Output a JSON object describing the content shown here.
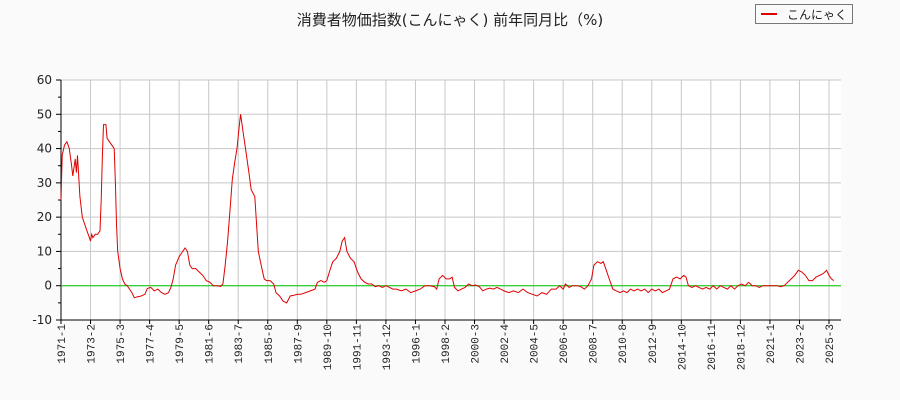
{
  "title": "消費者物価指数(こんにゃく) 前年同月比（%)",
  "legend": {
    "label": "こんにゃく",
    "color": "#e00000"
  },
  "colors": {
    "series": "#e00000",
    "zero_line": "#00cc00",
    "grid": "#c8c8c8",
    "axis": "#000000",
    "background": "#fafafa",
    "plot_bg": "#ffffff"
  },
  "chart_data": {
    "type": "line",
    "title": "消費者物価指数(こんにゃく) 前年同月比（%)",
    "xlabel": "",
    "ylabel": "",
    "ylim": [
      -10,
      60
    ],
    "yticks": [
      -10,
      0,
      10,
      20,
      30,
      40,
      50,
      60
    ],
    "grid": true,
    "legend_position": "top-right",
    "x_tick_labels": [
      "1971-1",
      "1973-2",
      "1975-3",
      "1977-4",
      "1979-5",
      "1981-6",
      "1983-7",
      "1985-8",
      "1987-9",
      "1989-10",
      "1991-11",
      "1993-12",
      "1996-1",
      "1998-2",
      "2000-3",
      "2002-4",
      "2004-5",
      "2006-6",
      "2008-7",
      "2010-8",
      "2012-9",
      "2014-10",
      "2016-11",
      "2018-12",
      "2021-1",
      "2023-2",
      "2025-3"
    ],
    "series": [
      {
        "name": "こんにゃく",
        "points": [
          [
            "1971-1",
            25
          ],
          [
            "1971-2",
            38
          ],
          [
            "1971-4",
            41
          ],
          [
            "1971-6",
            42
          ],
          [
            "1971-8",
            40
          ],
          [
            "1971-10",
            35
          ],
          [
            "1971-11",
            32
          ],
          [
            "1972-1",
            37
          ],
          [
            "1972-2",
            33
          ],
          [
            "1972-3",
            38
          ],
          [
            "1972-4",
            32
          ],
          [
            "1972-5",
            26
          ],
          [
            "1972-7",
            20
          ],
          [
            "1972-9",
            18
          ],
          [
            "1972-11",
            16
          ],
          [
            "1973-1",
            14
          ],
          [
            "1973-2",
            13
          ],
          [
            "1973-3",
            15
          ],
          [
            "1973-4",
            14
          ],
          [
            "1973-6",
            15
          ],
          [
            "1973-8",
            15
          ],
          [
            "1973-10",
            16
          ],
          [
            "1973-11",
            25
          ],
          [
            "1973-12",
            38
          ],
          [
            "1974-1",
            47
          ],
          [
            "1974-3",
            47
          ],
          [
            "1974-4",
            43
          ],
          [
            "1974-6",
            42
          ],
          [
            "1974-8",
            41
          ],
          [
            "1974-10",
            40
          ],
          [
            "1974-11",
            30
          ],
          [
            "1974-12",
            18
          ],
          [
            "1975-1",
            10
          ],
          [
            "1975-3",
            5
          ],
          [
            "1975-5",
            2
          ],
          [
            "1975-7",
            0.5
          ],
          [
            "1975-9",
            0
          ],
          [
            "1975-11",
            -1
          ],
          [
            "1976-1",
            -2
          ],
          [
            "1976-3",
            -3.5
          ],
          [
            "1976-6",
            -3.2
          ],
          [
            "1976-9",
            -3.0
          ],
          [
            "1976-12",
            -2.5
          ],
          [
            "1977-2",
            -0.8
          ],
          [
            "1977-5",
            -0.5
          ],
          [
            "1977-8",
            -1.5
          ],
          [
            "1977-11",
            -1
          ],
          [
            "1978-2",
            -2
          ],
          [
            "1978-5",
            -2.5
          ],
          [
            "1978-8",
            -2
          ],
          [
            "1978-10",
            -0.5
          ],
          [
            "1978-12",
            2
          ],
          [
            "1979-2",
            6
          ],
          [
            "1979-5",
            8.5
          ],
          [
            "1979-8",
            10
          ],
          [
            "1979-10",
            11
          ],
          [
            "1979-12",
            10
          ],
          [
            "1980-2",
            6
          ],
          [
            "1980-4",
            5
          ],
          [
            "1980-7",
            5
          ],
          [
            "1980-10",
            4
          ],
          [
            "1981-1",
            3
          ],
          [
            "1981-4",
            1.5
          ],
          [
            "1981-7",
            1
          ],
          [
            "1981-10",
            0
          ],
          [
            "1982-1",
            0
          ],
          [
            "1982-4",
            -0.2
          ],
          [
            "1982-6",
            0.5
          ],
          [
            "1982-8",
            6
          ],
          [
            "1982-10",
            13
          ],
          [
            "1982-12",
            22
          ],
          [
            "1983-2",
            31
          ],
          [
            "1983-4",
            36
          ],
          [
            "1983-6",
            40
          ],
          [
            "1983-8",
            47
          ],
          [
            "1983-9",
            50
          ],
          [
            "1983-11",
            45
          ],
          [
            "1984-2",
            38
          ],
          [
            "1984-4",
            33
          ],
          [
            "1984-6",
            28
          ],
          [
            "1984-9",
            26
          ],
          [
            "1984-12",
            10
          ],
          [
            "1985-3",
            5
          ],
          [
            "1985-5",
            2
          ],
          [
            "1985-7",
            1.5
          ],
          [
            "1985-10",
            1.5
          ],
          [
            "1986-1",
            0.5
          ],
          [
            "1986-3",
            -2
          ],
          [
            "1986-6",
            -3
          ],
          [
            "1986-9",
            -4.5
          ],
          [
            "1986-12",
            -5
          ],
          [
            "1987-3",
            -3
          ],
          [
            "1987-6",
            -2.8
          ],
          [
            "1987-9",
            -2.5
          ],
          [
            "1987-12",
            -2.5
          ],
          [
            "1988-4",
            -2
          ],
          [
            "1988-8",
            -1.5
          ],
          [
            "1988-12",
            -1
          ],
          [
            "1989-2",
            1
          ],
          [
            "1989-5",
            1.5
          ],
          [
            "1989-8",
            1
          ],
          [
            "1989-10",
            1.5
          ],
          [
            "1990-1",
            5
          ],
          [
            "1990-3",
            7
          ],
          [
            "1990-6",
            8
          ],
          [
            "1990-9",
            10
          ],
          [
            "1990-11",
            13
          ],
          [
            "1991-1",
            14
          ],
          [
            "1991-3",
            10
          ],
          [
            "1991-6",
            8
          ],
          [
            "1991-9",
            7
          ],
          [
            "1991-12",
            4
          ],
          [
            "1992-3",
            2
          ],
          [
            "1992-6",
            1
          ],
          [
            "1992-9",
            0.5
          ],
          [
            "1992-12",
            0.5
          ],
          [
            "1993-3",
            -0.3
          ],
          [
            "1993-6",
            0
          ],
          [
            "1993-9",
            -0.5
          ],
          [
            "1993-12",
            0
          ],
          [
            "1994-3",
            -0.5
          ],
          [
            "1994-6",
            -1
          ],
          [
            "1994-9",
            -1
          ],
          [
            "1995-1",
            -1.5
          ],
          [
            "1995-5",
            -1
          ],
          [
            "1995-9",
            -2
          ],
          [
            "1996-1",
            -1.5
          ],
          [
            "1996-5",
            -1
          ],
          [
            "1996-9",
            0
          ],
          [
            "1997-1",
            0
          ],
          [
            "1997-5",
            -0.3
          ],
          [
            "1997-7",
            -1
          ],
          [
            "1997-9",
            2
          ],
          [
            "1997-12",
            3
          ],
          [
            "1998-3",
            2
          ],
          [
            "1998-6",
            2
          ],
          [
            "1998-8",
            2.5
          ],
          [
            "1998-10",
            -0.5
          ],
          [
            "1999-1",
            -1.5
          ],
          [
            "1999-4",
            -1
          ],
          [
            "1999-7",
            -0.5
          ],
          [
            "1999-10",
            0.5
          ],
          [
            "2000-1",
            0
          ],
          [
            "2000-4",
            0.2
          ],
          [
            "2000-7",
            -0.3
          ],
          [
            "2000-10",
            -1.5
          ],
          [
            "2001-1",
            -1
          ],
          [
            "2001-4",
            -0.7
          ],
          [
            "2001-7",
            -1
          ],
          [
            "2001-10",
            -0.5
          ],
          [
            "2002-1",
            -1
          ],
          [
            "2002-4",
            -1.5
          ],
          [
            "2002-8",
            -2
          ],
          [
            "2002-12",
            -1.5
          ],
          [
            "2003-4",
            -2
          ],
          [
            "2003-8",
            -1
          ],
          [
            "2003-12",
            -2
          ],
          [
            "2004-4",
            -2.5
          ],
          [
            "2004-8",
            -3
          ],
          [
            "2004-12",
            -2
          ],
          [
            "2005-4",
            -2.5
          ],
          [
            "2005-8",
            -1
          ],
          [
            "2005-12",
            -1
          ],
          [
            "2006-3",
            0
          ],
          [
            "2006-6",
            -1
          ],
          [
            "2006-8",
            0.5
          ],
          [
            "2006-11",
            -0.5
          ],
          [
            "2007-2",
            0
          ],
          [
            "2007-6",
            0
          ],
          [
            "2007-9",
            -0.3
          ],
          [
            "2007-12",
            -1
          ],
          [
            "2008-3",
            0
          ],
          [
            "2008-6",
            2
          ],
          [
            "2008-8",
            6
          ],
          [
            "2008-11",
            7
          ],
          [
            "2009-2",
            6.5
          ],
          [
            "2009-4",
            7
          ],
          [
            "2009-6",
            5
          ],
          [
            "2009-9",
            2
          ],
          [
            "2009-12",
            -1
          ],
          [
            "2010-3",
            -1.5
          ],
          [
            "2010-6",
            -2
          ],
          [
            "2010-9",
            -1.5
          ],
          [
            "2010-12",
            -2
          ],
          [
            "2011-3",
            -1
          ],
          [
            "2011-6",
            -1.5
          ],
          [
            "2011-9",
            -1
          ],
          [
            "2011-12",
            -1.5
          ],
          [
            "2012-3",
            -1
          ],
          [
            "2012-6",
            -2
          ],
          [
            "2012-9",
            -1
          ],
          [
            "2012-12",
            -1.5
          ],
          [
            "2013-3",
            -1
          ],
          [
            "2013-6",
            -2
          ],
          [
            "2013-9",
            -1.5
          ],
          [
            "2013-12",
            -1
          ],
          [
            "2014-3",
            2
          ],
          [
            "2014-6",
            2.5
          ],
          [
            "2014-9",
            2
          ],
          [
            "2014-12",
            3
          ],
          [
            "2015-2",
            2.5
          ],
          [
            "2015-4",
            0
          ],
          [
            "2015-7",
            -0.5
          ],
          [
            "2015-10",
            0
          ],
          [
            "2016-1",
            -0.5
          ],
          [
            "2016-4",
            -1
          ],
          [
            "2016-7",
            -0.5
          ],
          [
            "2016-10",
            -1
          ],
          [
            "2017-1",
            0
          ],
          [
            "2017-4",
            -1
          ],
          [
            "2017-7",
            0
          ],
          [
            "2017-10",
            -0.5
          ],
          [
            "2018-1",
            -1
          ],
          [
            "2018-4",
            0
          ],
          [
            "2018-7",
            -1
          ],
          [
            "2018-10",
            0
          ],
          [
            "2019-1",
            0.5
          ],
          [
            "2019-4",
            0
          ],
          [
            "2019-7",
            1
          ],
          [
            "2019-10",
            0
          ],
          [
            "2020-1",
            0
          ],
          [
            "2020-4",
            -0.5
          ],
          [
            "2020-7",
            0
          ],
          [
            "2020-10",
            0
          ],
          [
            "2021-1",
            0
          ],
          [
            "2021-4",
            0
          ],
          [
            "2021-7",
            0
          ],
          [
            "2021-10",
            -0.3
          ],
          [
            "2022-1",
            0
          ],
          [
            "2022-4",
            1
          ],
          [
            "2022-7",
            2
          ],
          [
            "2022-10",
            3
          ],
          [
            "2023-1",
            4.5
          ],
          [
            "2023-4",
            4
          ],
          [
            "2023-7",
            3
          ],
          [
            "2023-10",
            1.5
          ],
          [
            "2024-1",
            1.5
          ],
          [
            "2024-4",
            2.5
          ],
          [
            "2024-7",
            3
          ],
          [
            "2024-10",
            3.5
          ],
          [
            "2025-1",
            4.5
          ],
          [
            "2025-3",
            3
          ],
          [
            "2025-5",
            2
          ],
          [
            "2025-7",
            1.5
          ]
        ]
      }
    ]
  }
}
